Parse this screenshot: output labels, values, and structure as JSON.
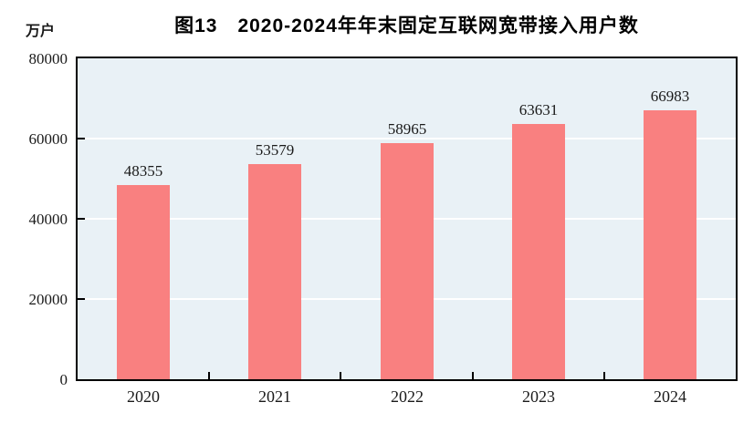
{
  "page": {
    "background": "#ffffff"
  },
  "header": {
    "title": "图13　2020-2024年年末固定互联网宽带接入用户数",
    "unit_label": "万户"
  },
  "chart_data": {
    "type": "bar",
    "title": "图13　2020-2024年年末固定互联网宽带接入用户数",
    "unit_label": "万户",
    "categories": [
      "2020",
      "2021",
      "2022",
      "2023",
      "2024"
    ],
    "values": [
      48355,
      53579,
      58965,
      63631,
      66983
    ],
    "value_labels": [
      "48355",
      "53579",
      "58965",
      "63631",
      "66983"
    ],
    "xlabel": "",
    "ylabel": "万户",
    "ylim": [
      0,
      80000
    ],
    "yticks": [
      0,
      20000,
      40000,
      60000,
      80000
    ],
    "ytick_labels": [
      "0",
      "20000",
      "40000",
      "60000",
      "80000"
    ],
    "grid": true,
    "legend": "none",
    "colors": {
      "bar": "#f98080",
      "plot_background": "#e9f1f6",
      "gridline": "#ffffff",
      "border": "#000000",
      "text": "#1a1a1a"
    }
  }
}
